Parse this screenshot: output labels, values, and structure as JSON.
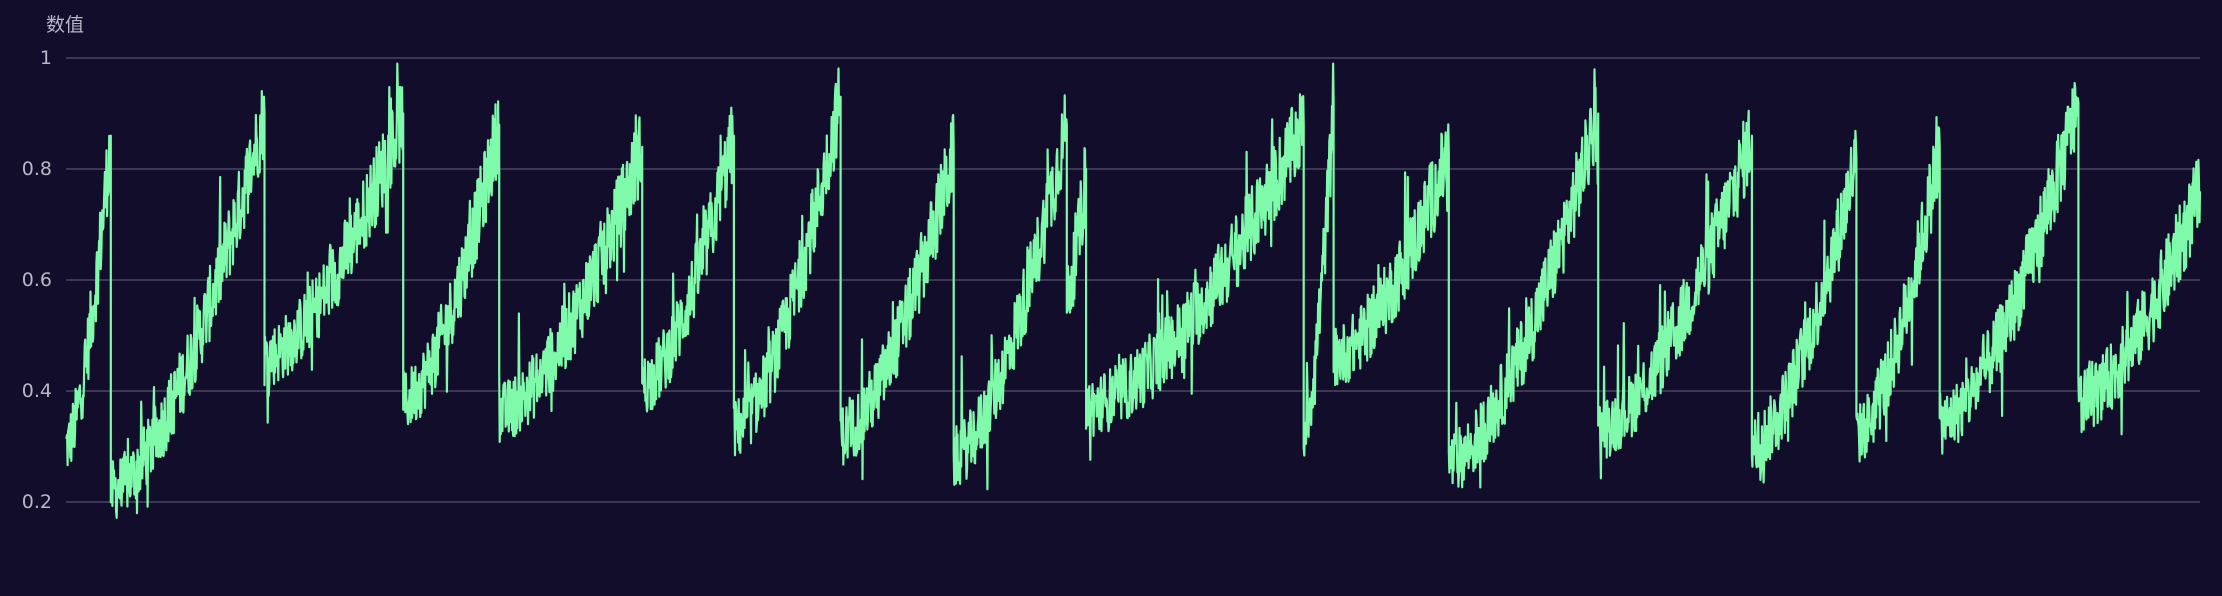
{
  "chart_data": {
    "type": "line",
    "ylabel": "数值",
    "ylim": [
      0.05,
      1.0
    ],
    "yticks": [
      {
        "value": 1,
        "label": "1"
      },
      {
        "value": 0.8,
        "label": "0.8"
      },
      {
        "value": 0.6,
        "label": "0.6"
      },
      {
        "value": 0.4,
        "label": "0.4"
      },
      {
        "value": 0.2,
        "label": "0.2"
      }
    ],
    "grid": true,
    "legend": "none",
    "series": [
      {
        "color": "#7ffaaa",
        "x_range": [
          0,
          1000
        ],
        "segments": [
          {
            "x0": 0,
            "x1": 21,
            "start": 0.3,
            "end": 0.86
          },
          {
            "x0": 21,
            "x1": 93,
            "start": 0.22,
            "end": 0.9
          },
          {
            "x0": 93,
            "x1": 158,
            "start": 0.46,
            "end": 0.9
          },
          {
            "x0": 158,
            "x1": 203,
            "start": 0.38,
            "end": 0.88
          },
          {
            "x0": 203,
            "x1": 270,
            "start": 0.36,
            "end": 0.84
          },
          {
            "x0": 270,
            "x1": 313,
            "start": 0.41,
            "end": 0.86
          },
          {
            "x0": 313,
            "x1": 363,
            "start": 0.33,
            "end": 0.93
          },
          {
            "x0": 363,
            "x1": 416,
            "start": 0.32,
            "end": 0.83
          },
          {
            "x0": 416,
            "x1": 469,
            "start": 0.28,
            "end": 0.88
          },
          {
            "x0": 469,
            "x1": 478,
            "start": 0.58,
            "end": 0.8
          },
          {
            "x0": 478,
            "x1": 580,
            "start": 0.37,
            "end": 0.88
          },
          {
            "x0": 580,
            "x1": 594,
            "start": 0.33,
            "end": 0.92
          },
          {
            "x0": 594,
            "x1": 648,
            "start": 0.46,
            "end": 0.83
          },
          {
            "x0": 648,
            "x1": 718,
            "start": 0.27,
            "end": 0.9
          },
          {
            "x0": 718,
            "x1": 790,
            "start": 0.33,
            "end": 0.86
          },
          {
            "x0": 790,
            "x1": 839,
            "start": 0.3,
            "end": 0.82
          },
          {
            "x0": 839,
            "x1": 878,
            "start": 0.32,
            "end": 0.84
          },
          {
            "x0": 878,
            "x1": 943,
            "start": 0.34,
            "end": 0.92
          },
          {
            "x0": 943,
            "x1": 1000,
            "start": 0.38,
            "end": 0.76
          }
        ]
      }
    ]
  }
}
